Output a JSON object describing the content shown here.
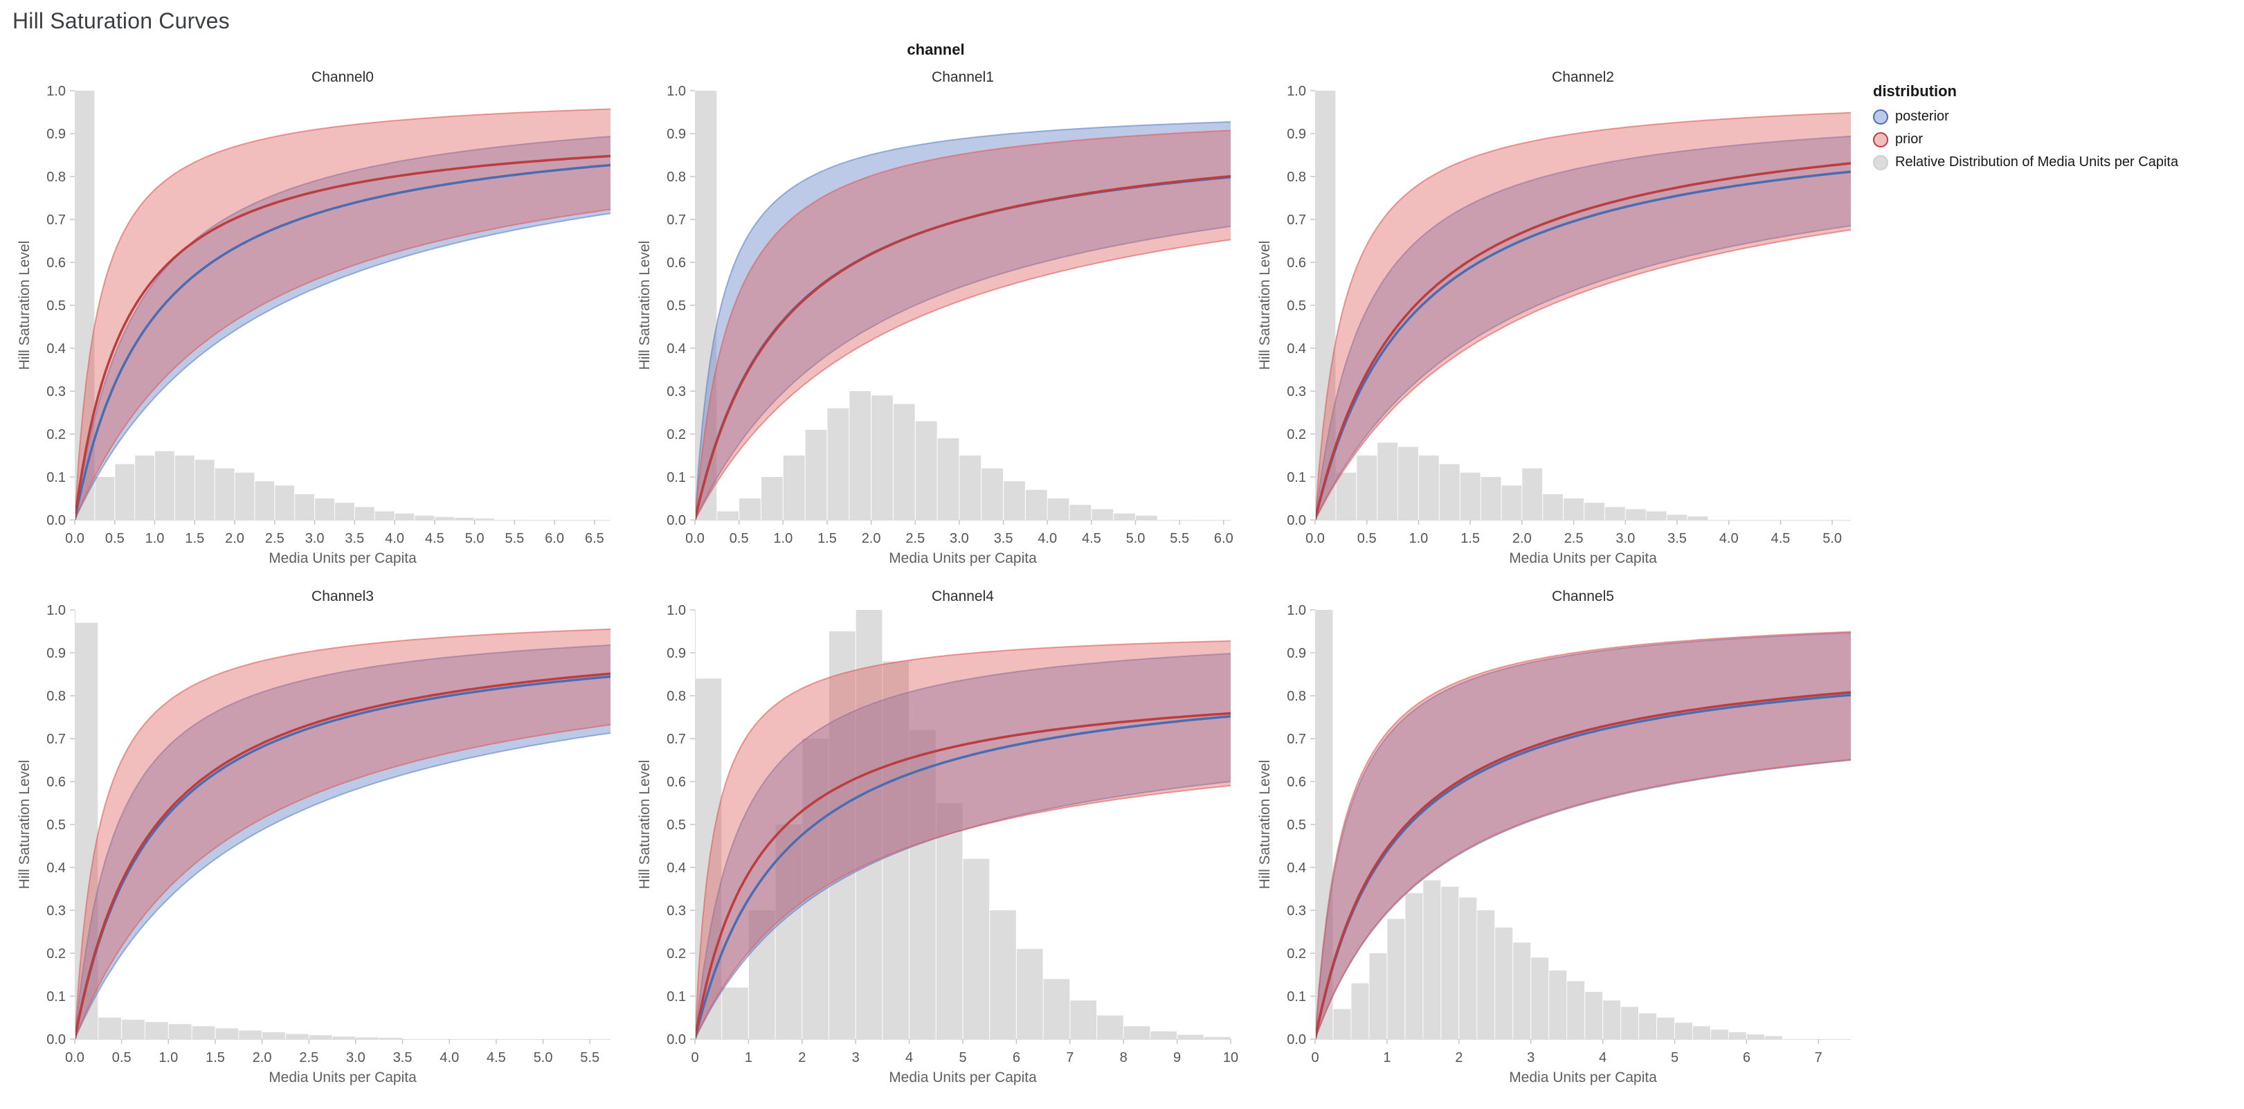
{
  "page": {
    "title": "Hill Saturation Curves"
  },
  "facet": {
    "title": "channel"
  },
  "legend": {
    "title": "distribution",
    "items": [
      {
        "label": "posterior",
        "swatch": "posterior"
      },
      {
        "label": "prior",
        "swatch": "prior"
      },
      {
        "label": "Relative Distribution of Media Units per Capita",
        "swatch": "histogram"
      }
    ]
  },
  "colors": {
    "posterior_line": "#4a6cb3",
    "posterior_band": "rgba(96,128,197,0.42)",
    "posterior_edge": "rgba(96,128,197,0.6)",
    "prior_line": "#bb3d3d",
    "prior_band": "rgba(222,92,90,0.40)",
    "prior_edge": "rgba(222,92,90,0.6)",
    "histogram": "#dcdcdc",
    "histogram_edge": "#d0d0d0",
    "axis_label": "#555555",
    "axis_title": "#5f5f5f",
    "panel_title": "#2f2f2f",
    "tick": "#c6c6c6",
    "domain": "#dddddd",
    "title": "#3b3f44"
  },
  "chart_data": {
    "type": "line",
    "title": "Hill Saturation Curves",
    "facet_field": "channel",
    "xlabel": "Media Units per Capita",
    "ylabel": "Hill Saturation Level",
    "ylim": [
      0,
      1
    ],
    "y_tick_step": 0.1,
    "curve_model": "hill: y = ymax * x / (x + k); band is region between lower and upper curves",
    "series_names": [
      "posterior",
      "prior"
    ],
    "panels": [
      {
        "name": "Channel0",
        "x_domain": [
          0,
          6.7
        ],
        "x_tick_step": 0.5,
        "x_tick_max": 6.5,
        "x_tick_decimals": 1,
        "posterior": {
          "median": {
            "ymax": 0.95,
            "k": 1.0
          },
          "upper": {
            "ymax": 1.0,
            "k": 0.8
          },
          "lower": {
            "ymax": 0.97,
            "k": 2.4
          }
        },
        "prior": {
          "median": {
            "ymax": 0.93,
            "k": 0.65
          },
          "upper": {
            "ymax": 1.0,
            "k": 0.3
          },
          "lower": {
            "ymax": 0.95,
            "k": 2.1
          }
        },
        "histogram": {
          "bin_width": 0.25,
          "heights": [
            1.0,
            0.1,
            0.13,
            0.15,
            0.16,
            0.15,
            0.14,
            0.12,
            0.11,
            0.09,
            0.08,
            0.06,
            0.05,
            0.04,
            0.03,
            0.02,
            0.015,
            0.01,
            0.007,
            0.005,
            0.003
          ]
        }
      },
      {
        "name": "Channel1",
        "x_domain": [
          0,
          6.08
        ],
        "x_tick_step": 0.5,
        "x_tick_max": 6.0,
        "x_tick_decimals": 1,
        "posterior": {
          "median": {
            "ymax": 0.93,
            "k": 1.0
          },
          "upper": {
            "ymax": 0.97,
            "k": 0.28
          },
          "lower": {
            "ymax": 0.92,
            "k": 2.1
          }
        },
        "prior": {
          "median": {
            "ymax": 0.935,
            "k": 1.02
          },
          "upper": {
            "ymax": 0.97,
            "k": 0.42
          },
          "lower": {
            "ymax": 0.9,
            "k": 2.3
          }
        },
        "histogram": {
          "bin_width": 0.25,
          "heights": [
            1.0,
            0.02,
            0.05,
            0.1,
            0.15,
            0.21,
            0.26,
            0.3,
            0.29,
            0.27,
            0.23,
            0.19,
            0.15,
            0.12,
            0.09,
            0.07,
            0.05,
            0.035,
            0.025,
            0.015,
            0.01
          ]
        }
      },
      {
        "name": "Channel2",
        "x_domain": [
          0,
          5.18
        ],
        "x_tick_step": 0.5,
        "x_tick_max": 5.0,
        "x_tick_decimals": 1,
        "posterior": {
          "median": {
            "ymax": 0.96,
            "k": 0.95
          },
          "upper": {
            "ymax": 0.98,
            "k": 0.5
          },
          "lower": {
            "ymax": 0.93,
            "k": 1.85
          }
        },
        "prior": {
          "median": {
            "ymax": 0.98,
            "k": 0.93
          },
          "upper": {
            "ymax": 1.0,
            "k": 0.28
          },
          "lower": {
            "ymax": 0.93,
            "k": 1.95
          }
        },
        "histogram": {
          "bin_width": 0.2,
          "heights": [
            1.0,
            0.11,
            0.15,
            0.18,
            0.17,
            0.15,
            0.13,
            0.11,
            0.1,
            0.08,
            0.12,
            0.06,
            0.05,
            0.04,
            0.03,
            0.025,
            0.02,
            0.012,
            0.008
          ]
        }
      },
      {
        "name": "Channel3",
        "x_domain": [
          0,
          5.72
        ],
        "x_tick_step": 0.5,
        "x_tick_max": 5.5,
        "x_tick_decimals": 1,
        "posterior": {
          "median": {
            "ymax": 0.97,
            "k": 0.85
          },
          "upper": {
            "ymax": 0.99,
            "k": 0.45
          },
          "lower": {
            "ymax": 0.95,
            "k": 1.9
          }
        },
        "prior": {
          "median": {
            "ymax": 0.975,
            "k": 0.83
          },
          "upper": {
            "ymax": 1.0,
            "k": 0.27
          },
          "lower": {
            "ymax": 0.95,
            "k": 1.7
          }
        },
        "histogram": {
          "bin_width": 0.25,
          "heights": [
            0.97,
            0.05,
            0.045,
            0.04,
            0.035,
            0.03,
            0.025,
            0.02,
            0.016,
            0.012,
            0.009,
            0.006,
            0.004,
            0.003
          ]
        }
      },
      {
        "name": "Channel4",
        "x_domain": [
          0,
          10.0
        ],
        "x_tick_step": 1,
        "x_tick_max": 10,
        "x_tick_decimals": 0,
        "posterior": {
          "median": {
            "ymax": 0.88,
            "k": 1.7
          },
          "upper": {
            "ymax": 0.97,
            "k": 0.8
          },
          "lower": {
            "ymax": 0.78,
            "k": 3.0
          }
        },
        "prior": {
          "median": {
            "ymax": 0.85,
            "k": 1.2
          },
          "upper": {
            "ymax": 0.96,
            "k": 0.35
          },
          "lower": {
            "ymax": 0.75,
            "k": 2.7
          }
        },
        "histogram": {
          "bin_width": 0.5,
          "heights": [
            0.84,
            0.12,
            0.3,
            0.5,
            0.7,
            0.95,
            1.0,
            0.88,
            0.72,
            0.55,
            0.42,
            0.3,
            0.21,
            0.14,
            0.09,
            0.055,
            0.03,
            0.018,
            0.01,
            0.005
          ]
        }
      },
      {
        "name": "Channel5",
        "x_domain": [
          0,
          7.45
        ],
        "x_tick_step": 1,
        "x_tick_max": 7,
        "x_tick_decimals": 0,
        "posterior": {
          "median": {
            "ymax": 0.92,
            "k": 1.1
          },
          "upper": {
            "ymax": 1.0,
            "k": 0.42
          },
          "lower": {
            "ymax": 0.8,
            "k": 1.72
          }
        },
        "prior": {
          "median": {
            "ymax": 0.925,
            "k": 1.08
          },
          "upper": {
            "ymax": 1.0,
            "k": 0.4
          },
          "lower": {
            "ymax": 0.8,
            "k": 1.7
          }
        },
        "histogram": {
          "bin_width": 0.25,
          "heights": [
            1.0,
            0.07,
            0.13,
            0.2,
            0.28,
            0.34,
            0.37,
            0.355,
            0.33,
            0.3,
            0.26,
            0.225,
            0.19,
            0.16,
            0.135,
            0.11,
            0.09,
            0.075,
            0.06,
            0.05,
            0.038,
            0.03,
            0.022,
            0.016,
            0.011,
            0.007
          ]
        }
      }
    ]
  }
}
